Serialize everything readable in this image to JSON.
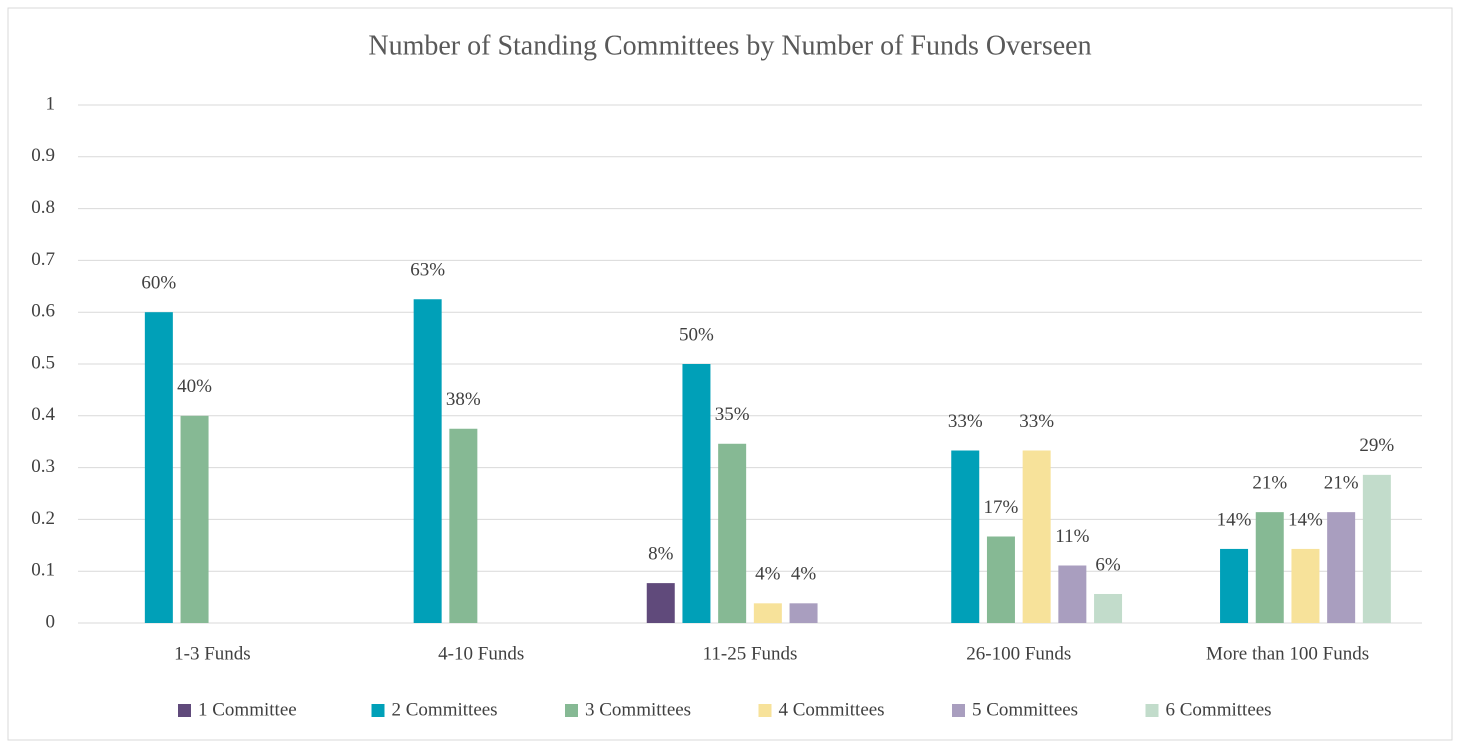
{
  "chart_data": {
    "type": "bar",
    "title": "Number of Standing Committees by Number of Funds Overseen",
    "categories": [
      "1-3 Funds",
      "4-10 Funds",
      "11-25 Funds",
      "26-100 Funds",
      "More than 100 Funds"
    ],
    "series": [
      {
        "name": "1 Committee",
        "color": "#604a7b",
        "values": [
          null,
          null,
          0.077,
          null,
          null
        ],
        "value_labels": [
          null,
          null,
          "8%",
          null,
          null
        ]
      },
      {
        "name": "2 Committees",
        "color": "#00a0b8",
        "values": [
          0.6,
          0.625,
          0.5,
          0.333,
          0.143
        ],
        "value_labels": [
          "60%",
          "63%",
          "50%",
          "33%",
          "14%"
        ]
      },
      {
        "name": "3 Committees",
        "color": "#86b994",
        "values": [
          0.4,
          0.375,
          0.346,
          0.167,
          0.214
        ],
        "value_labels": [
          "40%",
          "38%",
          "35%",
          "17%",
          "21%"
        ]
      },
      {
        "name": "4 Committees",
        "color": "#f7e29a",
        "values": [
          null,
          null,
          0.038,
          0.333,
          0.143
        ],
        "value_labels": [
          null,
          null,
          "4%",
          "33%",
          "14%"
        ]
      },
      {
        "name": "5 Committees",
        "color": "#a99ebf",
        "values": [
          null,
          null,
          0.038,
          0.111,
          0.214
        ],
        "value_labels": [
          null,
          null,
          "4%",
          "11%",
          "21%"
        ]
      },
      {
        "name": "6 Committees",
        "color": "#c2dccb",
        "values": [
          null,
          null,
          null,
          0.056,
          0.286
        ],
        "value_labels": [
          null,
          null,
          null,
          "6%",
          "29%"
        ]
      }
    ],
    "ylim": [
      0,
      1
    ],
    "yticks": [
      0,
      0.1,
      0.2,
      0.3,
      0.4,
      0.5,
      0.6,
      0.7,
      0.8,
      0.9,
      1
    ],
    "grid": true,
    "legend": "bottom"
  }
}
